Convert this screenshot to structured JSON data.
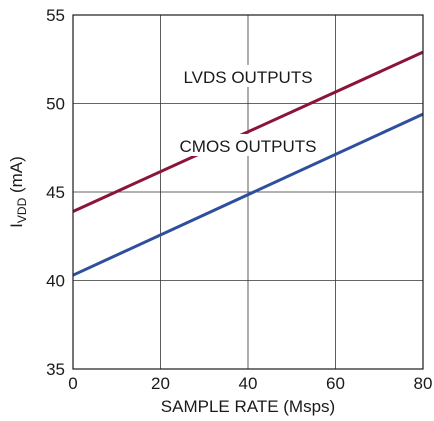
{
  "chart_data": {
    "type": "line",
    "xlabel": "SAMPLE RATE (Msps)",
    "ylabel": "I",
    "ylabel_sub": "VDD",
    "ylabel_unit": " (mA)",
    "xlim": [
      0,
      80
    ],
    "ylim": [
      35,
      55
    ],
    "x_ticks": [
      0,
      20,
      40,
      60,
      80
    ],
    "y_ticks": [
      35,
      40,
      45,
      50,
      55
    ],
    "grid": true,
    "series": [
      {
        "name": "LVDS OUTPUTS",
        "color": "#8b1538",
        "x": [
          0,
          80
        ],
        "y": [
          43.9,
          52.9
        ]
      },
      {
        "name": "CMOS OUTPUTS",
        "color": "#2e4f9e",
        "x": [
          0,
          80
        ],
        "y": [
          40.3,
          49.4
        ]
      }
    ]
  }
}
